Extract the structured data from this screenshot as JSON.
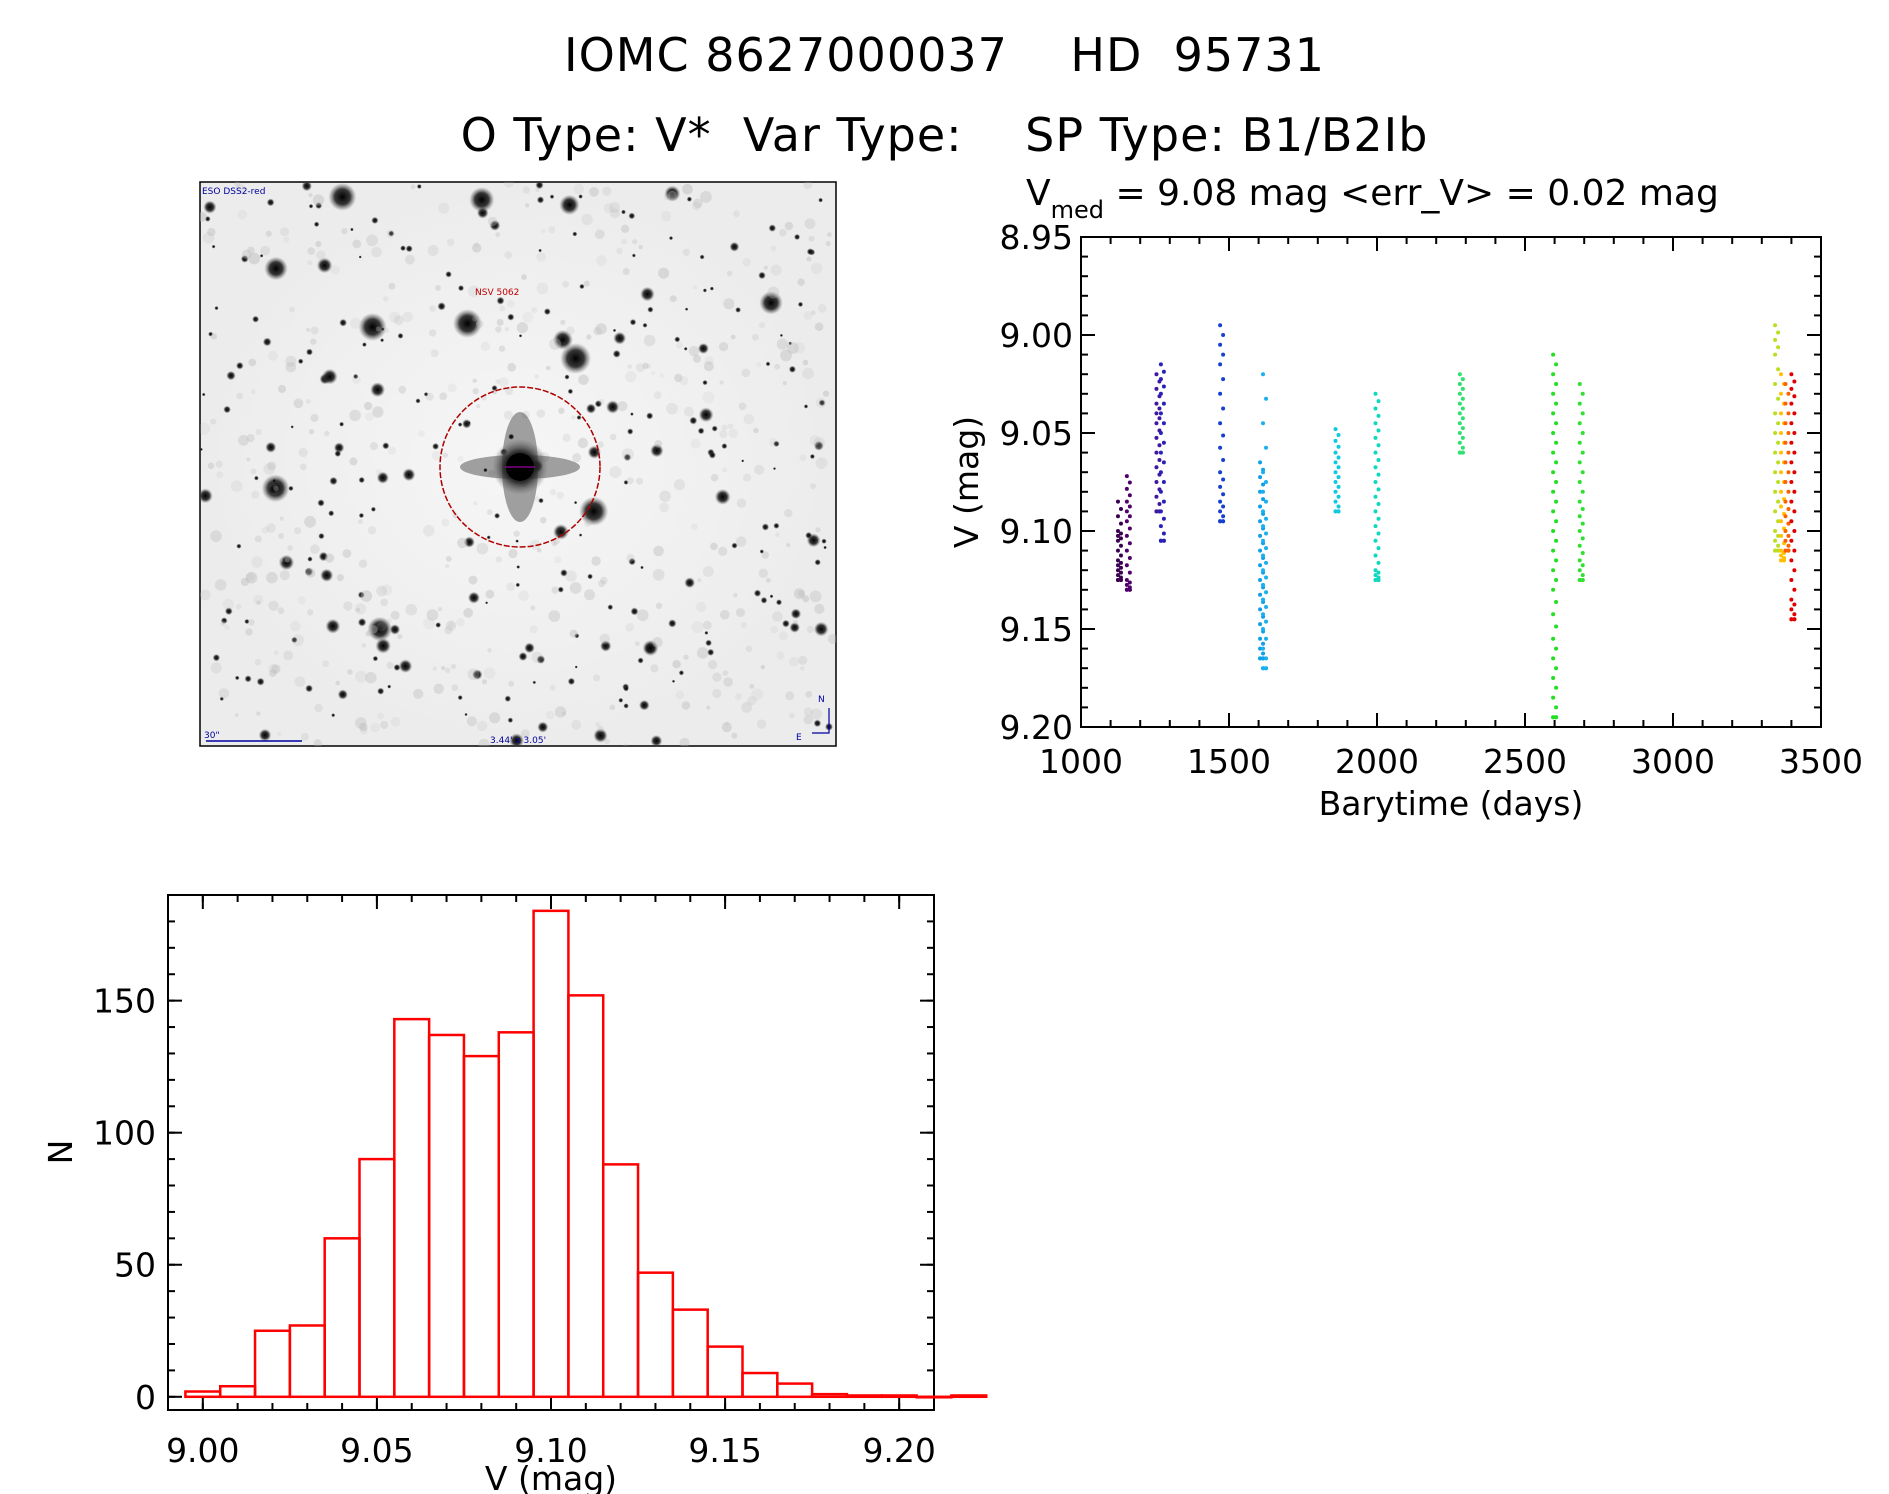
{
  "header": {
    "title_line1": "IOMC 8627000037    HD  95731",
    "title_line2": "O Type: V*  Var Type:    SP Type: B1/B2Ib"
  },
  "image_panel": {
    "corner_label": "ESO DSS2-red",
    "star_label": "NSV 5062",
    "scale_label": "30\"",
    "size_label": "3.44' x 3.05'",
    "north_label": "N",
    "east_label": "E"
  },
  "chart_data": [
    {
      "id": "light-curve",
      "type": "scatter",
      "title": "V_med = 9.08 mag <err_V> = 0.02 mag",
      "title_parts": {
        "v": "V",
        "sub": "med",
        "rest": " = 9.08 mag <err_V> = 0.02 mag"
      },
      "xlabel": "Barytime (days)",
      "ylabel": "V (mag)",
      "xlim": [
        1000,
        3500
      ],
      "ylim": [
        8.95,
        9.2
      ],
      "y_inverted": true,
      "xticks": [
        "1000",
        "1500",
        "2000",
        "2500",
        "3000",
        "3500"
      ],
      "yticks": [
        "8.95",
        "9.00",
        "9.05",
        "9.10",
        "9.15",
        "9.20"
      ],
      "groups": [
        {
          "x": 1130,
          "values": [
            9.085,
            9.1,
            9.105,
            9.115,
            9.12,
            9.125
          ],
          "color": "#3a0050"
        },
        {
          "x": 1160,
          "values": [
            9.072,
            9.085,
            9.095,
            9.11,
            9.125,
            9.13
          ],
          "color": "#50006a"
        },
        {
          "x": 1260,
          "values": [
            9.02,
            9.035,
            9.045,
            9.06,
            9.075,
            9.09
          ],
          "color": "#4018a0"
        },
        {
          "x": 1275,
          "values": [
            9.015,
            9.03,
            9.05,
            9.07,
            9.09,
            9.105
          ],
          "color": "#2820b8"
        },
        {
          "x": 1475,
          "values": [
            8.995,
            9.015,
            9.045,
            9.07,
            9.085,
            9.095
          ],
          "color": "#1840d0"
        },
        {
          "x": 1610,
          "values": [
            9.065,
            9.08,
            9.095,
            9.11,
            9.125,
            9.14,
            9.155,
            9.165
          ],
          "color": "#10a0e8"
        },
        {
          "x": 1620,
          "values": [
            9.02,
            9.07,
            9.09,
            9.105,
            9.12,
            9.135,
            9.15,
            9.17
          ],
          "color": "#18b0f0"
        },
        {
          "x": 1865,
          "values": [
            9.048,
            9.06,
            9.07,
            9.08,
            9.09
          ],
          "color": "#10c8e0"
        },
        {
          "x": 2000,
          "values": [
            9.03,
            9.045,
            9.06,
            9.075,
            9.09,
            9.105,
            9.12,
            9.125
          ],
          "color": "#10d8c0"
        },
        {
          "x": 2285,
          "values": [
            9.02,
            9.03,
            9.04,
            9.05,
            9.06
          ],
          "color": "#30e070"
        },
        {
          "x": 2600,
          "values": [
            9.01,
            9.03,
            9.05,
            9.07,
            9.09,
            9.11,
            9.13,
            9.155,
            9.175,
            9.195
          ],
          "color": "#20e020"
        },
        {
          "x": 2690,
          "values": [
            9.025,
            9.045,
            9.065,
            9.085,
            9.1,
            9.115,
            9.125
          ],
          "color": "#30e030"
        },
        {
          "x": 3350,
          "values": [
            8.995,
            9.01,
            9.04,
            9.06,
            9.08,
            9.1,
            9.11
          ],
          "color": "#b8e020"
        },
        {
          "x": 3370,
          "values": [
            9.02,
            9.04,
            9.06,
            9.08,
            9.095,
            9.11,
            9.115
          ],
          "color": "#ffc000"
        },
        {
          "x": 3385,
          "values": [
            9.025,
            9.045,
            9.065,
            9.085,
            9.1,
            9.11
          ],
          "color": "#ff6000"
        },
        {
          "x": 3405,
          "values": [
            9.02,
            9.035,
            9.055,
            9.075,
            9.095,
            9.115,
            9.135,
            9.145
          ],
          "color": "#e00000"
        }
      ]
    },
    {
      "id": "histogram",
      "type": "bar",
      "xlabel": "V (mag)",
      "ylabel": "N",
      "xlim": [
        8.99,
        9.21
      ],
      "ylim": [
        -5,
        190
      ],
      "xticks": [
        "9.00",
        "9.05",
        "9.10",
        "9.15",
        "9.20"
      ],
      "yticks": [
        "0",
        "50",
        "100",
        "150"
      ],
      "bin_start": 8.995,
      "bin_width": 0.01,
      "counts": [
        2,
        4,
        25,
        27,
        60,
        90,
        143,
        137,
        129,
        138,
        184,
        152,
        88,
        47,
        33,
        19,
        9,
        5,
        1,
        0.5,
        0.5,
        0,
        0.5
      ],
      "color": "#ff0000"
    }
  ]
}
